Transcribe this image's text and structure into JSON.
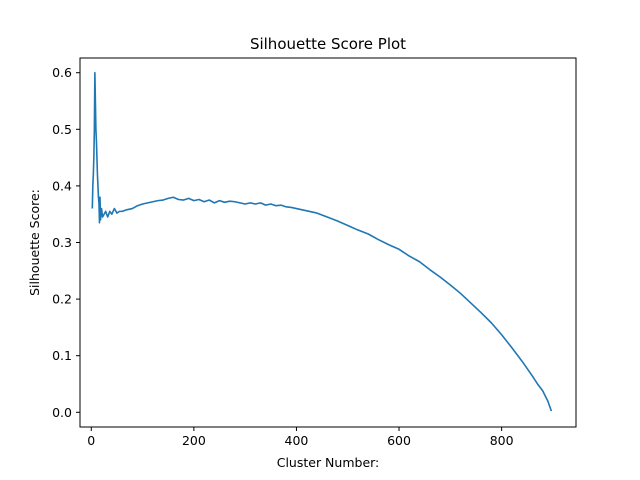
{
  "chart_data": {
    "type": "line",
    "title": "Silhouette Score Plot",
    "xlabel": "Cluster Number:",
    "ylabel": "Silhouette Score:",
    "xlim": [
      -22,
      945
    ],
    "ylim": [
      -0.026,
      0.626
    ],
    "xticks": [
      0,
      200,
      400,
      600,
      800
    ],
    "yticks": [
      0.0,
      0.1,
      0.2,
      0.3,
      0.4,
      0.5,
      0.6
    ],
    "xtick_labels": [
      "0",
      "200",
      "400",
      "600",
      "800"
    ],
    "ytick_labels": [
      "0.0",
      "0.1",
      "0.2",
      "0.3",
      "0.4",
      "0.5",
      "0.6"
    ],
    "grid": false,
    "legend": "none",
    "series_color": "#1f77b4",
    "series": [
      {
        "x": [
          2,
          3,
          4,
          5,
          6,
          7,
          8,
          9,
          10,
          11,
          12,
          13,
          14,
          15,
          16,
          17,
          18,
          20,
          22,
          25,
          28,
          32,
          36,
          40,
          45,
          50,
          55,
          60,
          70,
          80,
          90,
          100,
          110,
          120,
          130,
          140,
          150,
          160,
          170,
          180,
          190,
          200,
          210,
          220,
          230,
          240,
          250,
          260,
          270,
          280,
          290,
          300,
          310,
          320,
          330,
          340,
          350,
          360,
          370,
          380,
          390,
          400,
          420,
          440,
          460,
          480,
          500,
          520,
          540,
          560,
          580,
          600,
          620,
          640,
          660,
          680,
          700,
          720,
          740,
          760,
          780,
          800,
          820,
          840,
          860,
          870,
          880,
          890,
          897
        ],
        "y": [
          0.36,
          0.4,
          0.42,
          0.45,
          0.5,
          0.6,
          0.55,
          0.5,
          0.48,
          0.45,
          0.42,
          0.4,
          0.38,
          0.37,
          0.335,
          0.38,
          0.34,
          0.36,
          0.345,
          0.35,
          0.355,
          0.345,
          0.355,
          0.35,
          0.36,
          0.352,
          0.355,
          0.355,
          0.358,
          0.36,
          0.365,
          0.368,
          0.37,
          0.372,
          0.374,
          0.375,
          0.378,
          0.38,
          0.376,
          0.375,
          0.378,
          0.374,
          0.376,
          0.372,
          0.375,
          0.37,
          0.374,
          0.371,
          0.373,
          0.372,
          0.37,
          0.368,
          0.37,
          0.368,
          0.37,
          0.366,
          0.368,
          0.365,
          0.366,
          0.363,
          0.362,
          0.36,
          0.356,
          0.352,
          0.345,
          0.338,
          0.33,
          0.322,
          0.315,
          0.305,
          0.296,
          0.288,
          0.276,
          0.266,
          0.252,
          0.239,
          0.225,
          0.21,
          0.193,
          0.176,
          0.158,
          0.137,
          0.114,
          0.09,
          0.064,
          0.05,
          0.038,
          0.02,
          0.002
        ]
      }
    ]
  }
}
